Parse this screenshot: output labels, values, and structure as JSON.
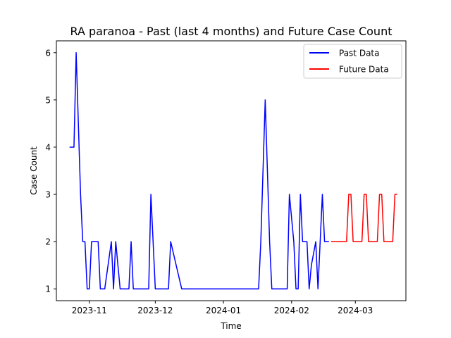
{
  "chart_data": {
    "type": "line",
    "title": "RA paranoa - Past (last 4 months) and Future Case Count",
    "xlabel": "Time",
    "ylabel": "Case Count",
    "xlim": [
      "2023-10-17",
      "2024-03-24"
    ],
    "ylim": [
      0.75,
      6.25
    ],
    "x_ticks": [
      {
        "date": "2023-11-01",
        "label": "2023-11"
      },
      {
        "date": "2023-12-01",
        "label": "2023-12"
      },
      {
        "date": "2024-01-01",
        "label": "2024-01"
      },
      {
        "date": "2024-02-01",
        "label": "2024-02"
      },
      {
        "date": "2024-03-01",
        "label": "2024-03"
      }
    ],
    "y_ticks": [
      1,
      2,
      3,
      4,
      5,
      6
    ],
    "grid": false,
    "legend": "top-right",
    "series": [
      {
        "name": "Past Data",
        "color": "#0000ff",
        "points": [
          [
            "2023-10-23",
            4
          ],
          [
            "2023-10-25",
            4
          ],
          [
            "2023-10-26",
            6
          ],
          [
            "2023-10-28",
            3
          ],
          [
            "2023-10-29",
            2
          ],
          [
            "2023-10-30",
            2
          ],
          [
            "2023-10-31",
            1
          ],
          [
            "2023-11-01",
            1
          ],
          [
            "2023-11-02",
            2
          ],
          [
            "2023-11-05",
            2
          ],
          [
            "2023-11-06",
            1
          ],
          [
            "2023-11-08",
            1
          ],
          [
            "2023-11-11",
            2
          ],
          [
            "2023-11-12",
            1
          ],
          [
            "2023-11-13",
            2
          ],
          [
            "2023-11-15",
            1
          ],
          [
            "2023-11-19",
            1
          ],
          [
            "2023-11-20",
            2
          ],
          [
            "2023-11-21",
            1
          ],
          [
            "2023-11-28",
            1
          ],
          [
            "2023-11-29",
            3
          ],
          [
            "2023-12-01",
            1
          ],
          [
            "2023-12-07",
            1
          ],
          [
            "2023-12-08",
            2
          ],
          [
            "2023-12-13",
            1
          ],
          [
            "2024-01-17",
            1
          ],
          [
            "2024-01-18",
            2
          ],
          [
            "2024-01-20",
            5
          ],
          [
            "2024-01-22",
            2
          ],
          [
            "2024-01-23",
            1
          ],
          [
            "2024-01-30",
            1
          ],
          [
            "2024-01-31",
            3
          ],
          [
            "2024-02-02",
            2
          ],
          [
            "2024-02-03",
            1
          ],
          [
            "2024-02-04",
            1
          ],
          [
            "2024-02-05",
            3
          ],
          [
            "2024-02-06",
            2
          ],
          [
            "2024-02-08",
            2
          ],
          [
            "2024-02-09",
            1
          ],
          [
            "2024-02-10",
            1.5
          ],
          [
            "2024-02-12",
            2
          ],
          [
            "2024-02-13",
            1
          ],
          [
            "2024-02-14",
            2
          ],
          [
            "2024-02-15",
            3
          ],
          [
            "2024-02-16",
            2
          ],
          [
            "2024-02-18",
            2
          ]
        ]
      },
      {
        "name": "Future Data",
        "color": "#ff0000",
        "points": [
          [
            "2024-02-19",
            2
          ],
          [
            "2024-02-26",
            2
          ],
          [
            "2024-02-27",
            3
          ],
          [
            "2024-02-28",
            3
          ],
          [
            "2024-02-29",
            2
          ],
          [
            "2024-03-04",
            2
          ],
          [
            "2024-03-05",
            3
          ],
          [
            "2024-03-06",
            3
          ],
          [
            "2024-03-07",
            2
          ],
          [
            "2024-03-11",
            2
          ],
          [
            "2024-03-12",
            3
          ],
          [
            "2024-03-13",
            3
          ],
          [
            "2024-03-14",
            2
          ],
          [
            "2024-03-18",
            2
          ],
          [
            "2024-03-19",
            3
          ],
          [
            "2024-03-20",
            3
          ]
        ]
      }
    ]
  }
}
